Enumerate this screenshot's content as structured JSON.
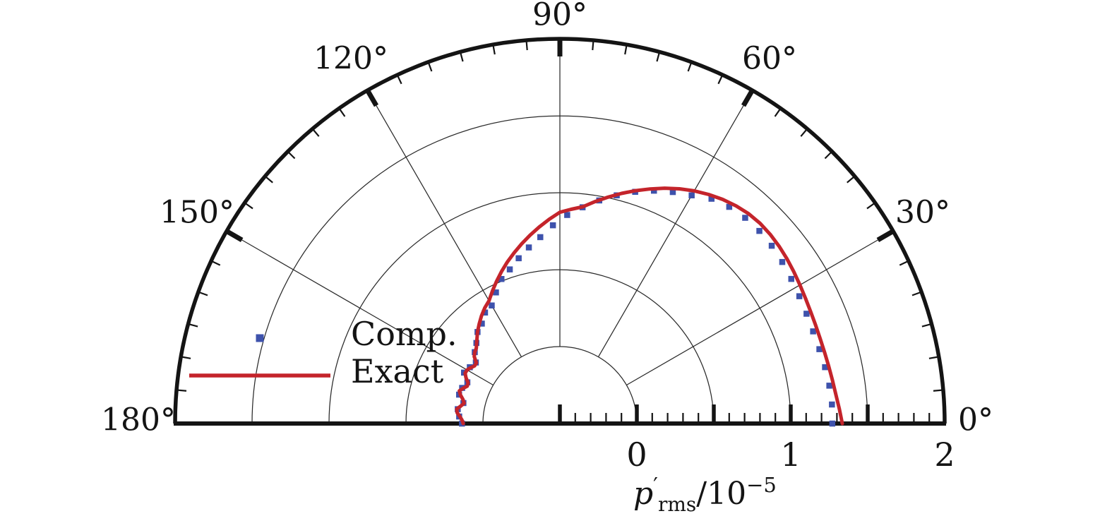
{
  "figure": {
    "background": "#ffffff"
  },
  "chart_data": {
    "type": "polar_half",
    "title": "",
    "angular_axis": {
      "unit": "degrees",
      "min": 0,
      "max": 180,
      "major_step_deg": 30,
      "minor_step_deg": 5,
      "major_labels": [
        {
          "deg": 0,
          "label": "0°"
        },
        {
          "deg": 30,
          "label": "30°"
        },
        {
          "deg": 60,
          "label": "60°"
        },
        {
          "deg": 90,
          "label": "90°"
        },
        {
          "deg": 120,
          "label": "120°"
        },
        {
          "deg": 150,
          "label": "150°"
        },
        {
          "deg": 180,
          "label": "180°"
        }
      ]
    },
    "radial_axis": {
      "min": -0.5,
      "max": 2.0,
      "major_step": 0.5,
      "minor_step": 0.1,
      "grid_circle_values": [
        0,
        0.5,
        1.0,
        1.5
      ],
      "tick_labels": [
        {
          "value": 0,
          "label": "0"
        },
        {
          "value": 1,
          "label": "1"
        },
        {
          "value": 2,
          "label": "2"
        }
      ],
      "label_plain": "p′rms/10−5",
      "label_rich": {
        "lead": "p",
        "prime": "′",
        "subscript": "rms",
        "divider": "/",
        "base": "10",
        "exponent": "−5"
      }
    },
    "colors": {
      "comp": "#3E52AC",
      "exact": "#C4242B",
      "axis": "#141414",
      "grid": "#2a2a2a"
    },
    "legend": {
      "items": [
        {
          "series": "Comp.",
          "marker": "square"
        },
        {
          "series": "Exact",
          "marker": "line"
        }
      ]
    },
    "series": [
      {
        "name": "Comp.",
        "type": "scatter",
        "marker": "square",
        "color": "#3E52AC",
        "points": [
          [
            0,
            1.27
          ],
          [
            4,
            1.272
          ],
          [
            8,
            1.268
          ],
          [
            12,
            1.261
          ],
          [
            16,
            1.254
          ],
          [
            20,
            1.251
          ],
          [
            24,
            1.254
          ],
          [
            28,
            1.262
          ],
          [
            32,
            1.273
          ],
          [
            36,
            1.286
          ],
          [
            40,
            1.297
          ],
          [
            44,
            1.302
          ],
          [
            48,
            1.299
          ],
          [
            52,
            1.287
          ],
          [
            56,
            1.262
          ],
          [
            60,
            1.212
          ],
          [
            64,
            1.174
          ],
          [
            68,
            1.132
          ],
          [
            72,
            1.083
          ],
          [
            76,
            1.028
          ],
          [
            80,
            0.972
          ],
          [
            84,
            0.913
          ],
          [
            88,
            0.856
          ],
          [
            92,
            0.789
          ],
          [
            96,
            0.718
          ],
          [
            100,
            0.662
          ],
          [
            104,
            0.607
          ],
          [
            108,
            0.553
          ],
          [
            112,
            0.513
          ],
          [
            116,
            0.448
          ],
          [
            120,
            0.386
          ],
          [
            124,
            0.37
          ],
          [
            128,
            0.324
          ],
          [
            132,
            0.3
          ],
          [
            136,
            0.254
          ],
          [
            140,
            0.222
          ],
          [
            144,
            0.175
          ],
          [
            148,
            0.19
          ],
          [
            152,
            0.205
          ],
          [
            156,
            0.158
          ],
          [
            160,
            0.176
          ],
          [
            164,
            0.181
          ],
          [
            168,
            0.141
          ],
          [
            172,
            0.17
          ],
          [
            176,
            0.156
          ],
          [
            180,
            0.136
          ]
        ]
      },
      {
        "name": "Exact",
        "type": "line",
        "color": "#C4242B",
        "points": [
          [
            0,
            1.335
          ],
          [
            3,
            1.318
          ],
          [
            6,
            1.303
          ],
          [
            9,
            1.293
          ],
          [
            12,
            1.286
          ],
          [
            15,
            1.281
          ],
          [
            18,
            1.279
          ],
          [
            21,
            1.28
          ],
          [
            24,
            1.284
          ],
          [
            27,
            1.291
          ],
          [
            30,
            1.301
          ],
          [
            33,
            1.312
          ],
          [
            36,
            1.323
          ],
          [
            39,
            1.332
          ],
          [
            42,
            1.338
          ],
          [
            45,
            1.34
          ],
          [
            48,
            1.334
          ],
          [
            51,
            1.32
          ],
          [
            54,
            1.3
          ],
          [
            57,
            1.275
          ],
          [
            60,
            1.246
          ],
          [
            63,
            1.212
          ],
          [
            66,
            1.174
          ],
          [
            69,
            1.133
          ],
          [
            72,
            1.091
          ],
          [
            75,
            1.048
          ],
          [
            78,
            1.004
          ],
          [
            81,
            0.96
          ],
          [
            84,
            0.916
          ],
          [
            87,
            0.894
          ],
          [
            90,
            0.873
          ],
          [
            93,
            0.829
          ],
          [
            96,
            0.784
          ],
          [
            99,
            0.739
          ],
          [
            102,
            0.694
          ],
          [
            105,
            0.649
          ],
          [
            108,
            0.604
          ],
          [
            111,
            0.558
          ],
          [
            114,
            0.512
          ],
          [
            117,
            0.466
          ],
          [
            120,
            0.421
          ],
          [
            123,
            0.396
          ],
          [
            126,
            0.366
          ],
          [
            129,
            0.333
          ],
          [
            132,
            0.3
          ],
          [
            135,
            0.263
          ],
          [
            138,
            0.231
          ],
          [
            140,
            0.222
          ],
          [
            142,
            0.206
          ],
          [
            144,
            0.17
          ],
          [
            146,
            0.169
          ],
          [
            148,
            0.184
          ],
          [
            150,
            0.196
          ],
          [
            152,
            0.197
          ],
          [
            154,
            0.179
          ],
          [
            156,
            0.153
          ],
          [
            158,
            0.149
          ],
          [
            160,
            0.169
          ],
          [
            162,
            0.187
          ],
          [
            164,
            0.172
          ],
          [
            166,
            0.149
          ],
          [
            168,
            0.136
          ],
          [
            170,
            0.154
          ],
          [
            172,
            0.177
          ],
          [
            174,
            0.171
          ],
          [
            176,
            0.151
          ],
          [
            178,
            0.136
          ],
          [
            180,
            0.128
          ]
        ]
      }
    ]
  }
}
